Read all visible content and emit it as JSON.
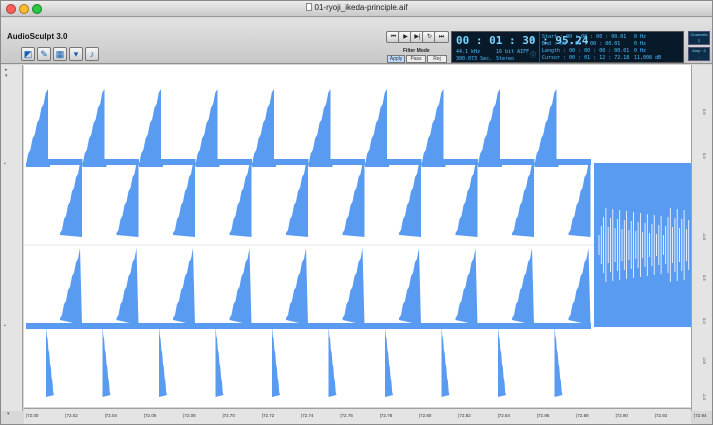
{
  "window": {
    "title": "01-ryoji_ikeda-principle.aif",
    "traffic_lights": {
      "close": "#ff5f57",
      "minimize": "#febc2e",
      "zoom": "#28c840"
    }
  },
  "toolbar": {
    "app_name": "AudioSculpt 3.0",
    "tools": [
      {
        "name": "selection-tool-icon",
        "glyph": "◩"
      },
      {
        "name": "pencil-tool-icon",
        "glyph": "✎"
      },
      {
        "name": "grid-tool-icon",
        "glyph": "▦"
      },
      {
        "name": "dropdown-tool-icon",
        "glyph": "▾"
      },
      {
        "name": "note-tool-icon",
        "glyph": "♪"
      }
    ],
    "transport": [
      {
        "name": "rewind-button",
        "glyph": "⏮"
      },
      {
        "name": "play-button",
        "glyph": "▶"
      },
      {
        "name": "play-selection-button",
        "glyph": "▶|"
      },
      {
        "name": "loop-button",
        "glyph": "↻"
      },
      {
        "name": "end-button",
        "glyph": "⏭"
      }
    ],
    "filter": {
      "label": "Filter Mode",
      "buttons": [
        "Apply",
        "Pass",
        "Rej"
      ]
    }
  },
  "display": {
    "time": "00 : 01 : 30 : 95.24",
    "sample_rate": "44.1 kHz",
    "bit_depth": "16 bit AIFF",
    "duration": "300.073 Sec.",
    "channels": "Stereo",
    "start": "Start : 00 : 00 : 00 : 00.01",
    "end": "End : 00 : 00 : 00 : 00.01",
    "length": "Length : 00 : 00 : 00 : 00.01",
    "cursor": "Cursor : 00 : 01 : 12 : 72.18",
    "freq_start": "0 Hz",
    "freq_end": "0 Hz",
    "freq_len": "0 Hz",
    "db": "11,008 dB",
    "side_top_label": "Channels",
    "side_top_value": "2",
    "side_bottom_label": "Amp : 0",
    "side_bottom_value": "-"
  },
  "time_ruler": {
    "labels": [
      "72.00",
      "72.02",
      "72.04",
      "72.06",
      "72.08",
      "72.70",
      "72.72",
      "72.74",
      "72.76",
      "72.78",
      "72.80",
      "72.82",
      "72.84",
      "72.86",
      "72.88",
      "72.90",
      "72.92",
      "72.94"
    ]
  },
  "amplitude_ruler": {
    "labels": [
      "0.5",
      "0.0",
      "-0.5",
      "0.5",
      "0.0",
      "-0.5",
      "-1.0"
    ]
  },
  "waveform": {
    "color": "#5a9bf2"
  }
}
